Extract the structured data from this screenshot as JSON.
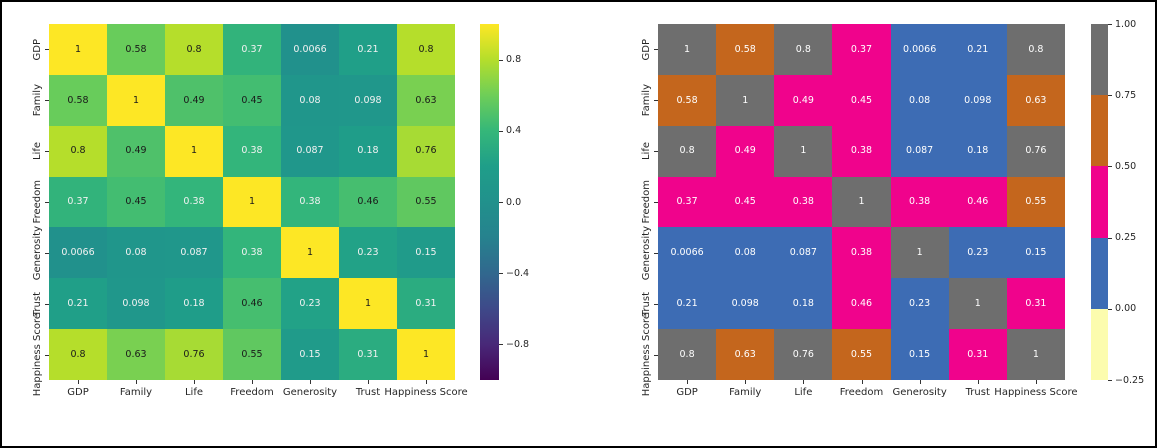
{
  "styles": {
    "background": "#ffffff",
    "frame_color": "#000000",
    "tick_label_color": "#262626",
    "annot_black": "#1a1a1a",
    "annot_white": "#f2f2f2"
  },
  "viridis_stops": [
    "#440154",
    "#482878",
    "#3e4989",
    "#31688e",
    "#26828e",
    "#21918c",
    "#1f9e89",
    "#35b779",
    "#6ece58",
    "#b5de2b",
    "#fde725"
  ],
  "chart_data": [
    {
      "id": "left-heatmap",
      "type": "heatmap",
      "title": "",
      "style": "correlation matrix, seaborn, viridis continuous colormap",
      "categories": [
        "GDP",
        "Family",
        "Life",
        "Freedom",
        "Generosity",
        "Trust",
        "Happiness Score"
      ],
      "matrix": [
        [
          1,
          0.58,
          0.8,
          0.37,
          0.0066,
          0.21,
          0.8
        ],
        [
          0.58,
          1,
          0.49,
          0.45,
          0.08,
          0.098,
          0.63
        ],
        [
          0.8,
          0.49,
          1,
          0.38,
          0.087,
          0.18,
          0.76
        ],
        [
          0.37,
          0.45,
          0.38,
          1,
          0.38,
          0.46,
          0.55
        ],
        [
          0.0066,
          0.08,
          0.087,
          0.38,
          1,
          0.23,
          0.15
        ],
        [
          0.21,
          0.098,
          0.18,
          0.46,
          0.23,
          1,
          0.31
        ],
        [
          0.8,
          0.63,
          0.76,
          0.55,
          0.15,
          0.31,
          1
        ]
      ],
      "cell_labels": [
        [
          "1",
          "0.58",
          "0.8",
          "0.37",
          "0.0066",
          "0.21",
          "0.8"
        ],
        [
          "0.58",
          "1",
          "0.49",
          "0.45",
          "0.08",
          "0.098",
          "0.63"
        ],
        [
          "0.8",
          "0.49",
          "1",
          "0.38",
          "0.087",
          "0.18",
          "0.76"
        ],
        [
          "0.37",
          "0.45",
          "0.38",
          "1",
          "0.38",
          "0.46",
          "0.55"
        ],
        [
          "0.0066",
          "0.08",
          "0.087",
          "0.38",
          "1",
          "0.23",
          "0.15"
        ],
        [
          "0.21",
          "0.098",
          "0.18",
          "0.46",
          "0.23",
          "1",
          "0.31"
        ],
        [
          "0.8",
          "0.63",
          "0.76",
          "0.55",
          "0.15",
          "0.31",
          "1"
        ]
      ],
      "colormap": "viridis",
      "vmin": -1,
      "vmax": 1,
      "colorbar_ticks": [
        {
          "value": 0.8,
          "label": "0.8"
        },
        {
          "value": 0.4,
          "label": "0.4"
        },
        {
          "value": 0.0,
          "label": "0.0"
        },
        {
          "value": -0.4,
          "label": "−0.4"
        },
        {
          "value": -0.8,
          "label": "−0.8"
        }
      ]
    },
    {
      "id": "right-heatmap",
      "type": "heatmap",
      "title": "",
      "style": "correlation matrix, seaborn, 5-color discrete colormap",
      "categories": [
        "GDP",
        "Family",
        "Life",
        "Freedom",
        "Generosity",
        "Trust",
        "Happiness Score"
      ],
      "matrix": [
        [
          1,
          0.58,
          0.8,
          0.37,
          0.0066,
          0.21,
          0.8
        ],
        [
          0.58,
          1,
          0.49,
          0.45,
          0.08,
          0.098,
          0.63
        ],
        [
          0.8,
          0.49,
          1,
          0.38,
          0.087,
          0.18,
          0.76
        ],
        [
          0.37,
          0.45,
          0.38,
          1,
          0.38,
          0.46,
          0.55
        ],
        [
          0.0066,
          0.08,
          0.087,
          0.38,
          1,
          0.23,
          0.15
        ],
        [
          0.21,
          0.098,
          0.18,
          0.46,
          0.23,
          1,
          0.31
        ],
        [
          0.8,
          0.63,
          0.76,
          0.55,
          0.15,
          0.31,
          1
        ]
      ],
      "cell_labels": [
        [
          "1",
          "0.58",
          "0.8",
          "0.37",
          "0.0066",
          "0.21",
          "0.8"
        ],
        [
          "0.58",
          "1",
          "0.49",
          "0.45",
          "0.08",
          "0.098",
          "0.63"
        ],
        [
          "0.8",
          "0.49",
          "1",
          "0.38",
          "0.087",
          "0.18",
          "0.76"
        ],
        [
          "0.37",
          "0.45",
          "0.38",
          "1",
          "0.38",
          "0.46",
          "0.55"
        ],
        [
          "0.0066",
          "0.08",
          "0.087",
          "0.38",
          "1",
          "0.23",
          "0.15"
        ],
        [
          "0.21",
          "0.098",
          "0.18",
          "0.46",
          "0.23",
          "1",
          "0.31"
        ],
        [
          "0.8",
          "0.63",
          "0.76",
          "0.55",
          "0.15",
          "0.31",
          "1"
        ]
      ],
      "colormap": "discrete-5",
      "vmin": -0.25,
      "vmax": 1.0,
      "bins": [
        {
          "min": 0.75,
          "max": 1.0,
          "color": "#6e6e6e"
        },
        {
          "min": 0.5,
          "max": 0.75,
          "color": "#c4661d"
        },
        {
          "min": 0.25,
          "max": 0.5,
          "color": "#f0038c"
        },
        {
          "min": 0.0,
          "max": 0.25,
          "color": "#3d6cb4"
        },
        {
          "min": -0.25,
          "max": 0.0,
          "color": "#fcfcae"
        }
      ],
      "annot_color": "#ffffff",
      "colorbar_ticks": [
        {
          "value": 1.0,
          "label": "1.00"
        },
        {
          "value": 0.75,
          "label": "0.75"
        },
        {
          "value": 0.5,
          "label": "0.50"
        },
        {
          "value": 0.25,
          "label": "0.25"
        },
        {
          "value": 0.0,
          "label": "0.00"
        },
        {
          "value": -0.25,
          "label": "−0.25"
        }
      ]
    }
  ]
}
